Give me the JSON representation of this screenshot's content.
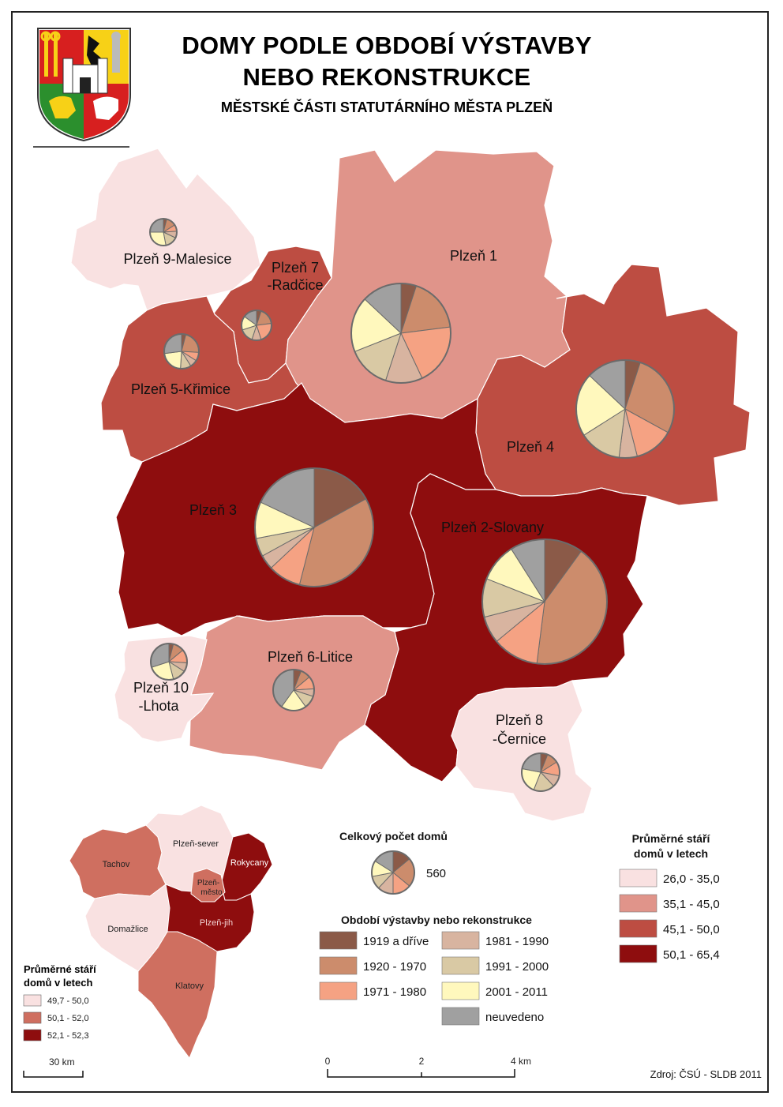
{
  "title_line1": "DOMY PODLE OBDOBÍ VÝSTAVBY",
  "title_line2": "NEBO REKONSTRUKCE",
  "subtitle": "MĚSTSKÉ ČÁSTI STATUTÁRNÍHO MĚSTA PLZEŇ",
  "colors": {
    "class1": "#f9e1e1",
    "class2": "#e0948a",
    "class3": "#bd4d42",
    "class4": "#8e0d0e",
    "1919 a dříve": "#8b5a48",
    "1920 - 1970": "#cc8c6c",
    "1971 - 1980": "#f5a283",
    "1981 - 1990": "#d8b4a0",
    "1991 - 2000": "#d9c9a4",
    "2001 - 2011": "#fff8bd",
    "neuvedeno": "#a0a0a0"
  },
  "districts": [
    {
      "name": "Plzeň 1",
      "class": "class2"
    },
    {
      "name": "Plzeň 2-Slovany",
      "class": "class4"
    },
    {
      "name": "Plzeň 3",
      "class": "class4"
    },
    {
      "name": "Plzeň 4",
      "class": "class3"
    },
    {
      "name": "Plzeň 5-Křimice",
      "class": "class3"
    },
    {
      "name": "Plzeň 6-Litice",
      "class": "class2"
    },
    {
      "name": "Plzeň 7 -Radčice",
      "label_lines": [
        "Plzeň 7",
        "-Radčice"
      ],
      "class": "class3"
    },
    {
      "name": "Plzeň 8 -Černice",
      "label_lines": [
        "Plzeň 8",
        "-Černice"
      ],
      "class": "class1"
    },
    {
      "name": "Plzeň 9-Malesice",
      "class": "class1"
    },
    {
      "name": "Plzeň 10 -Lhota",
      "label_lines": [
        "Plzeň 10",
        "-Lhota"
      ],
      "class": "class1"
    }
  ],
  "pie_shares": {
    "Plzeň 1": [
      5,
      18,
      20,
      12,
      14,
      18,
      13
    ],
    "Plzeň 2-Slovany": [
      10,
      42,
      12,
      7,
      10,
      10,
      9
    ],
    "Plzeň 3": [
      17,
      37,
      9,
      4,
      5,
      10,
      18
    ],
    "Plzeň 4": [
      5,
      28,
      13,
      6,
      14,
      21,
      13
    ],
    "Plzeň 5-Křimice": [
      4,
      22,
      8,
      7,
      10,
      22,
      27
    ],
    "Plzeň 6-Litice": [
      6,
      8,
      10,
      6,
      10,
      20,
      40
    ],
    "Plzeň 7 -Radčice": [
      5,
      18,
      22,
      10,
      15,
      15,
      15
    ],
    "Plzeň 8 -Černice": [
      6,
      10,
      12,
      10,
      18,
      22,
      22
    ],
    "Plzeň 9-Malesice": [
      4,
      12,
      8,
      8,
      15,
      28,
      25
    ],
    "Plzeň 10 -Lhota": [
      4,
      10,
      12,
      8,
      12,
      24,
      30
    ]
  },
  "pie_legend": {
    "title": "Celkový počet domů",
    "value": "560",
    "shares": [
      14,
      22,
      14,
      12,
      10,
      12,
      16
    ]
  },
  "period_legend": {
    "title": "Období výstavby nebo rekonstrukce",
    "items": [
      "1919 a dříve",
      "1920 - 1970",
      "1971 - 1980",
      "1981 - 1990",
      "1991 - 2000",
      "2001 - 2011",
      "neuvedeno"
    ]
  },
  "age_legend": {
    "title_line1": "Průměrné stáří",
    "title_line2": "domů v letech",
    "items": [
      {
        "label": "26,0 - 35,0",
        "class": "class1"
      },
      {
        "label": "35,1 - 45,0",
        "class": "class2"
      },
      {
        "label": "45,1 - 50,0",
        "class": "class3"
      },
      {
        "label": "50,1 - 65,4",
        "class": "class4"
      }
    ]
  },
  "inset_map": {
    "regions": [
      {
        "name": "Tachov",
        "color": "#cf6f60"
      },
      {
        "name": "Plzeň-sever",
        "color": "#f9e1e1"
      },
      {
        "name": "Rokycany",
        "color": "#8e0d0e"
      },
      {
        "name": "Plzeň-město",
        "label_lines": [
          "Plzeň-",
          "město"
        ],
        "color": "#cf6f60"
      },
      {
        "name": "Domažlice",
        "color": "#f9e1e1"
      },
      {
        "name": "Plzeň-jih",
        "color": "#8e0d0e"
      },
      {
        "name": "Klatovy",
        "color": "#cf6f60"
      }
    ],
    "legend_title_line1": "Průměrné stáří",
    "legend_title_line2": "domů v letech",
    "legend_items": [
      {
        "label": "49,7 - 50,0",
        "color": "#f9e1e1"
      },
      {
        "label": "50,1 - 52,0",
        "color": "#cf6f60"
      },
      {
        "label": "52,1 - 52,3",
        "color": "#8e0d0e"
      }
    ],
    "scale_label": "30 km"
  },
  "scale_bar": {
    "ticks": [
      "0",
      "2",
      "4 km"
    ]
  },
  "source": "Zdroj: ČSÚ - SLDB 2011"
}
